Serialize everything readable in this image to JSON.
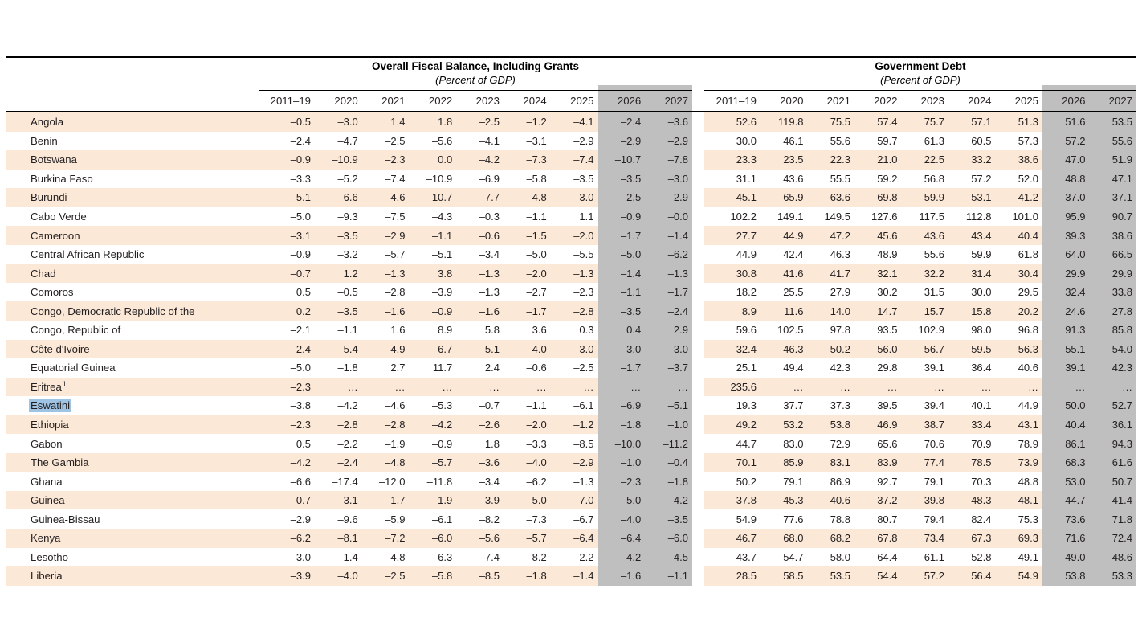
{
  "page": {
    "left_group": {
      "title": "Overall Fiscal Balance, Including Grants",
      "subtitle": "(Percent of GDP)"
    },
    "right_group": {
      "title": "Government Debt",
      "subtitle": "(Percent of GDP)"
    },
    "years": [
      "2011–19",
      "2020",
      "2021",
      "2022",
      "2023",
      "2024",
      "2025",
      "2026",
      "2027"
    ],
    "shaded_years": [
      "2026",
      "2027"
    ],
    "selected_country": "Eswatini",
    "colors": {
      "stripe": "#fbe8d7",
      "shaded_column": "#bfbfbf",
      "selection_highlight": "#9fc3e3",
      "rule": "#000000",
      "text": "#231f20"
    },
    "rows": [
      {
        "country": "Angola",
        "fiscal": [
          "–0.5",
          "–3.0",
          "1.4",
          "1.8",
          "–2.5",
          "–1.2",
          "–4.1",
          "–2.4",
          "–3.6"
        ],
        "debt": [
          "52.6",
          "119.8",
          "75.5",
          "57.4",
          "75.7",
          "57.1",
          "51.3",
          "51.6",
          "53.5"
        ]
      },
      {
        "country": "Benin",
        "fiscal": [
          "–2.4",
          "–4.7",
          "–2.5",
          "–5.6",
          "–4.1",
          "–3.1",
          "–2.9",
          "–2.9",
          "–2.9"
        ],
        "debt": [
          "30.0",
          "46.1",
          "55.6",
          "59.7",
          "61.3",
          "60.5",
          "57.3",
          "57.2",
          "55.6"
        ]
      },
      {
        "country": "Botswana",
        "fiscal": [
          "–0.9",
          "–10.9",
          "–2.3",
          "0.0",
          "–4.2",
          "–7.3",
          "–7.4",
          "–10.7",
          "–7.8"
        ],
        "debt": [
          "23.3",
          "23.5",
          "22.3",
          "21.0",
          "22.5",
          "33.2",
          "38.6",
          "47.0",
          "51.9"
        ]
      },
      {
        "country": "Burkina Faso",
        "fiscal": [
          "–3.3",
          "–5.2",
          "–7.4",
          "–10.9",
          "–6.9",
          "–5.8",
          "–3.5",
          "–3.5",
          "–3.0"
        ],
        "debt": [
          "31.1",
          "43.6",
          "55.5",
          "59.2",
          "56.8",
          "57.2",
          "52.0",
          "48.8",
          "47.1"
        ]
      },
      {
        "country": "Burundi",
        "fiscal": [
          "–5.1",
          "–6.6",
          "–4.6",
          "–10.7",
          "–7.7",
          "–4.8",
          "–3.0",
          "–2.5",
          "–2.9"
        ],
        "debt": [
          "45.1",
          "65.9",
          "63.6",
          "69.8",
          "59.9",
          "53.1",
          "41.2",
          "37.0",
          "37.1"
        ]
      },
      {
        "country": "Cabo Verde",
        "fiscal": [
          "–5.0",
          "–9.3",
          "–7.5",
          "–4.3",
          "–0.3",
          "–1.1",
          "1.1",
          "–0.9",
          "–0.0"
        ],
        "debt": [
          "102.2",
          "149.1",
          "149.5",
          "127.6",
          "117.5",
          "112.8",
          "101.0",
          "95.9",
          "90.7"
        ]
      },
      {
        "country": "Cameroon",
        "fiscal": [
          "–3.1",
          "–3.5",
          "–2.9",
          "–1.1",
          "–0.6",
          "–1.5",
          "–2.0",
          "–1.7",
          "–1.4"
        ],
        "debt": [
          "27.7",
          "44.9",
          "47.2",
          "45.6",
          "43.6",
          "43.4",
          "40.4",
          "39.3",
          "38.6"
        ]
      },
      {
        "country": "Central African Republic",
        "fiscal": [
          "–0.9",
          "–3.2",
          "–5.7",
          "–5.1",
          "–3.4",
          "–5.0",
          "–5.5",
          "–5.0",
          "–6.2"
        ],
        "debt": [
          "44.9",
          "42.4",
          "46.3",
          "48.9",
          "55.6",
          "59.9",
          "61.8",
          "64.0",
          "66.5"
        ]
      },
      {
        "country": "Chad",
        "fiscal": [
          "–0.7",
          "1.2",
          "–1.3",
          "3.8",
          "–1.3",
          "–2.0",
          "–1.3",
          "–1.4",
          "–1.3"
        ],
        "debt": [
          "30.8",
          "41.6",
          "41.7",
          "32.1",
          "32.2",
          "31.4",
          "30.4",
          "29.9",
          "29.9"
        ]
      },
      {
        "country": "Comoros",
        "fiscal": [
          "0.5",
          "–0.5",
          "–2.8",
          "–3.9",
          "–1.3",
          "–2.7",
          "–2.3",
          "–1.1",
          "–1.7"
        ],
        "debt": [
          "18.2",
          "25.5",
          "27.9",
          "30.2",
          "31.5",
          "30.0",
          "29.5",
          "32.4",
          "33.8"
        ]
      },
      {
        "country": "Congo, Democratic Republic of the",
        "fiscal": [
          "0.2",
          "–3.5",
          "–1.6",
          "–0.9",
          "–1.6",
          "–1.7",
          "–2.8",
          "–3.5",
          "–2.4"
        ],
        "debt": [
          "8.9",
          "11.6",
          "14.0",
          "14.7",
          "15.7",
          "15.8",
          "20.2",
          "24.6",
          "27.8"
        ]
      },
      {
        "country": "Congo, Republic of",
        "fiscal": [
          "–2.1",
          "–1.1",
          "1.6",
          "8.9",
          "5.8",
          "3.6",
          "0.3",
          "0.4",
          "2.9"
        ],
        "debt": [
          "59.6",
          "102.5",
          "97.8",
          "93.5",
          "102.9",
          "98.0",
          "96.8",
          "91.3",
          "85.8"
        ]
      },
      {
        "country": "Côte d'Ivoire",
        "fiscal": [
          "–2.4",
          "–5.4",
          "–4.9",
          "–6.7",
          "–5.1",
          "–4.0",
          "–3.0",
          "–3.0",
          "–3.0"
        ],
        "debt": [
          "32.4",
          "46.3",
          "50.2",
          "56.0",
          "56.7",
          "59.5",
          "56.3",
          "55.1",
          "54.0"
        ]
      },
      {
        "country": "Equatorial Guinea",
        "fiscal": [
          "–5.0",
          "–1.8",
          "2.7",
          "11.7",
          "2.4",
          "–0.6",
          "–2.5",
          "–1.7",
          "–3.7"
        ],
        "debt": [
          "25.1",
          "49.4",
          "42.3",
          "29.8",
          "39.1",
          "36.4",
          "40.6",
          "39.1",
          "42.3"
        ]
      },
      {
        "country": "Eritrea",
        "sup": "1",
        "fiscal": [
          "–2.3",
          "…",
          "…",
          "…",
          "…",
          "…",
          "…",
          "…",
          "…"
        ],
        "debt": [
          "235.6",
          "…",
          "…",
          "…",
          "…",
          "…",
          "…",
          "…",
          "…"
        ]
      },
      {
        "country": "Eswatini",
        "selected": true,
        "fiscal": [
          "–3.8",
          "–4.2",
          "–4.6",
          "–5.3",
          "–0.7",
          "–1.1",
          "–6.1",
          "–6.9",
          "–5.1"
        ],
        "debt": [
          "19.3",
          "37.7",
          "37.3",
          "39.5",
          "39.4",
          "40.1",
          "44.9",
          "50.0",
          "52.7"
        ]
      },
      {
        "country": "Ethiopia",
        "fiscal": [
          "–2.3",
          "–2.8",
          "–2.8",
          "–4.2",
          "–2.6",
          "–2.0",
          "–1.2",
          "–1.8",
          "–1.0"
        ],
        "debt": [
          "49.2",
          "53.2",
          "53.8",
          "46.9",
          "38.7",
          "33.4",
          "43.1",
          "40.4",
          "36.1"
        ]
      },
      {
        "country": "Gabon",
        "fiscal": [
          "0.5",
          "–2.2",
          "–1.9",
          "–0.9",
          "1.8",
          "–3.3",
          "–8.5",
          "–10.0",
          "–11.2"
        ],
        "debt": [
          "44.7",
          "83.0",
          "72.9",
          "65.6",
          "70.6",
          "70.9",
          "78.9",
          "86.1",
          "94.3"
        ]
      },
      {
        "country": "The Gambia",
        "fiscal": [
          "–4.2",
          "–2.4",
          "–4.8",
          "–5.7",
          "–3.6",
          "–4.0",
          "–2.9",
          "–1.0",
          "–0.4"
        ],
        "debt": [
          "70.1",
          "85.9",
          "83.1",
          "83.9",
          "77.4",
          "78.5",
          "73.9",
          "68.3",
          "61.6"
        ]
      },
      {
        "country": "Ghana",
        "fiscal": [
          "–6.6",
          "–17.4",
          "–12.0",
          "–11.8",
          "–3.4",
          "–6.2",
          "–1.3",
          "–2.3",
          "–1.8"
        ],
        "debt": [
          "50.2",
          "79.1",
          "86.9",
          "92.7",
          "79.1",
          "70.3",
          "48.8",
          "53.0",
          "50.7"
        ]
      },
      {
        "country": "Guinea",
        "fiscal": [
          "0.7",
          "–3.1",
          "–1.7",
          "–1.9",
          "–3.9",
          "–5.0",
          "–7.0",
          "–5.0",
          "–4.2"
        ],
        "debt": [
          "37.8",
          "45.3",
          "40.6",
          "37.2",
          "39.8",
          "48.3",
          "48.1",
          "44.7",
          "41.4"
        ]
      },
      {
        "country": "Guinea-Bissau",
        "fiscal": [
          "–2.9",
          "–9.6",
          "–5.9",
          "–6.1",
          "–8.2",
          "–7.3",
          "–6.7",
          "–4.0",
          "–3.5"
        ],
        "debt": [
          "54.9",
          "77.6",
          "78.8",
          "80.7",
          "79.4",
          "82.4",
          "75.3",
          "73.6",
          "71.8"
        ]
      },
      {
        "country": "Kenya",
        "fiscal": [
          "–6.2",
          "–8.1",
          "–7.2",
          "–6.0",
          "–5.6",
          "–5.7",
          "–6.4",
          "–6.4",
          "–6.0"
        ],
        "debt": [
          "46.7",
          "68.0",
          "68.2",
          "67.8",
          "73.4",
          "67.3",
          "69.3",
          "71.6",
          "72.4"
        ]
      },
      {
        "country": "Lesotho",
        "fiscal": [
          "–3.0",
          "1.4",
          "–4.8",
          "–6.3",
          "7.4",
          "8.2",
          "2.2",
          "4.2",
          "4.5"
        ],
        "debt": [
          "43.7",
          "54.7",
          "58.0",
          "64.4",
          "61.1",
          "52.8",
          "49.1",
          "49.0",
          "48.6"
        ]
      },
      {
        "country": "Liberia",
        "fiscal": [
          "–3.9",
          "–4.0",
          "–2.5",
          "–5.8",
          "–8.5",
          "–1.8",
          "–1.4",
          "–1.6",
          "–1.1"
        ],
        "debt": [
          "28.5",
          "58.5",
          "53.5",
          "54.4",
          "57.2",
          "56.4",
          "54.9",
          "53.8",
          "53.3"
        ]
      }
    ]
  }
}
